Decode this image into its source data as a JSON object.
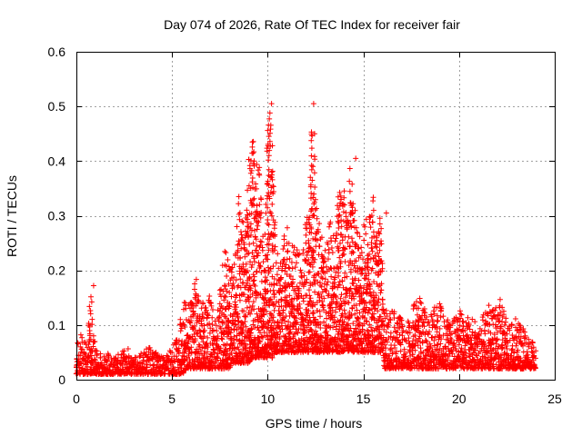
{
  "chart_data": {
    "type": "scatter",
    "title": "Day 074 of 2026, Rate Of TEC Index for receiver fair",
    "xlabel": "GPS time / hours",
    "ylabel": "ROTI / TECUs",
    "xlim": [
      0,
      25
    ],
    "ylim": [
      0,
      0.6
    ],
    "xticks": [
      "0",
      "5",
      "10",
      "15",
      "20",
      "25"
    ],
    "yticks": [
      "0",
      "0.1",
      "0.2",
      "0.3",
      "0.4",
      "0.5",
      "0.6"
    ],
    "grid": true,
    "legend": "none",
    "marker": "+",
    "color": "#ff0000",
    "series": [
      {
        "x": [
          0.0,
          0.2,
          0.4,
          0.6,
          0.7,
          0.8,
          0.85,
          0.9,
          1.0,
          1.2,
          1.5,
          1.8,
          2.0,
          2.3,
          2.7,
          3.0,
          3.4,
          3.8,
          4.2,
          4.6,
          5.0,
          5.3,
          5.6,
          5.8,
          6.0,
          6.2,
          6.5,
          6.8,
          7.0,
          7.3,
          7.6,
          7.8,
          8.0,
          8.2,
          8.5,
          8.7,
          8.9,
          9.0,
          9.2,
          9.4,
          9.5,
          9.6,
          9.7,
          9.8,
          9.9,
          10.0,
          10.1,
          10.2,
          10.3,
          10.4,
          10.5,
          10.6,
          10.8,
          11.0,
          11.2,
          11.5,
          11.8,
          12.0,
          12.2,
          12.3,
          12.4,
          12.5,
          12.7,
          13.0,
          13.2,
          13.5,
          13.7,
          13.9,
          14.0,
          14.1,
          14.3,
          14.5,
          14.7,
          14.9,
          15.0,
          15.2,
          15.4,
          15.5,
          15.7,
          15.9,
          16.0,
          16.1,
          16.3,
          16.6,
          16.9,
          17.2,
          17.5,
          17.8,
          18.0,
          18.3,
          18.6,
          19.0,
          19.3,
          19.6,
          20.0,
          20.3,
          20.6,
          21.0,
          21.3,
          21.6,
          22.0,
          22.2,
          22.4,
          22.7,
          23.0,
          23.3,
          23.6,
          23.9,
          24.0
        ],
        "y": [
          0.06,
          0.09,
          0.08,
          0.1,
          0.15,
          0.17,
          0.12,
          0.08,
          0.07,
          0.05,
          0.05,
          0.05,
          0.04,
          0.05,
          0.06,
          0.04,
          0.05,
          0.06,
          0.05,
          0.04,
          0.06,
          0.08,
          0.15,
          0.13,
          0.15,
          0.2,
          0.14,
          0.17,
          0.15,
          0.1,
          0.2,
          0.25,
          0.22,
          0.21,
          0.35,
          0.3,
          0.34,
          0.42,
          0.45,
          0.38,
          0.44,
          0.36,
          0.3,
          0.26,
          0.35,
          0.48,
          0.5,
          0.45,
          0.42,
          0.3,
          0.26,
          0.22,
          0.25,
          0.3,
          0.24,
          0.26,
          0.22,
          0.3,
          0.34,
          0.5,
          0.45,
          0.35,
          0.28,
          0.24,
          0.3,
          0.26,
          0.35,
          0.34,
          0.36,
          0.3,
          0.4,
          0.32,
          0.3,
          0.25,
          0.29,
          0.3,
          0.33,
          0.35,
          0.26,
          0.3,
          0.25,
          0.14,
          0.12,
          0.13,
          0.12,
          0.1,
          0.12,
          0.16,
          0.15,
          0.12,
          0.13,
          0.14,
          0.12,
          0.1,
          0.13,
          0.11,
          0.12,
          0.1,
          0.12,
          0.14,
          0.13,
          0.16,
          0.12,
          0.1,
          0.12,
          0.1,
          0.08,
          0.07,
          0.06
        ],
        "y_low": [
          0.01,
          0.01,
          0.01,
          0.01,
          0.01,
          0.01,
          0.01,
          0.01,
          0.01,
          0.01,
          0.01,
          0.01,
          0.01,
          0.01,
          0.01,
          0.01,
          0.01,
          0.01,
          0.01,
          0.01,
          0.01,
          0.01,
          0.01,
          0.02,
          0.02,
          0.02,
          0.02,
          0.02,
          0.02,
          0.02,
          0.02,
          0.02,
          0.02,
          0.03,
          0.03,
          0.03,
          0.03,
          0.03,
          0.04,
          0.04,
          0.04,
          0.04,
          0.04,
          0.04,
          0.04,
          0.04,
          0.04,
          0.04,
          0.04,
          0.05,
          0.05,
          0.05,
          0.05,
          0.05,
          0.05,
          0.05,
          0.05,
          0.05,
          0.05,
          0.05,
          0.05,
          0.05,
          0.05,
          0.05,
          0.05,
          0.05,
          0.05,
          0.05,
          0.05,
          0.05,
          0.05,
          0.05,
          0.05,
          0.05,
          0.05,
          0.05,
          0.05,
          0.05,
          0.05,
          0.05,
          0.05,
          0.02,
          0.02,
          0.02,
          0.02,
          0.02,
          0.02,
          0.02,
          0.02,
          0.02,
          0.02,
          0.02,
          0.02,
          0.02,
          0.02,
          0.02,
          0.02,
          0.02,
          0.02,
          0.02,
          0.02,
          0.02,
          0.02,
          0.02,
          0.02,
          0.02,
          0.02,
          0.02,
          0.02
        ],
        "x_step": 0.04
      }
    ],
    "outliers": [
      {
        "x": 10.2,
        "y": 0.505
      },
      {
        "x": 12.4,
        "y": 0.505
      },
      {
        "x": 12.45,
        "y": 0.45
      },
      {
        "x": 14.6,
        "y": 0.405
      },
      {
        "x": 0.9,
        "y": 0.172
      },
      {
        "x": 16.2,
        "y": 0.305
      }
    ]
  }
}
